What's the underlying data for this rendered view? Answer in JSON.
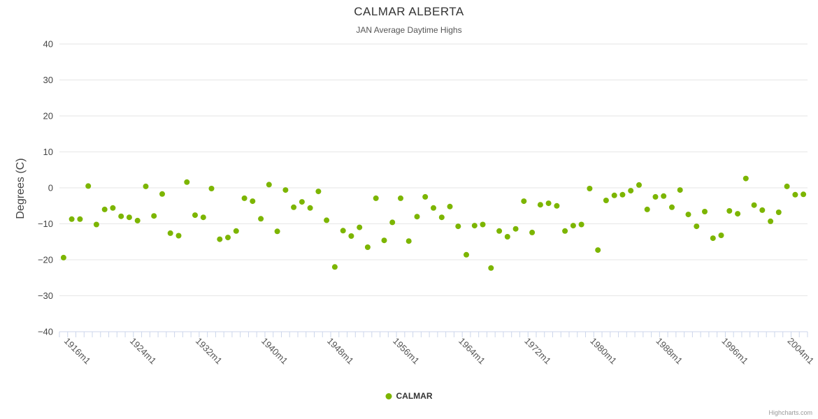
{
  "title": "CALMAR ALBERTA",
  "subtitle": "JAN Average Daytime Highs",
  "y_axis_title": "Degrees (C)",
  "legend": {
    "label": "CALMAR",
    "marker_color": "#7cb500"
  },
  "credit": "Highcharts.com",
  "chart_data": {
    "type": "scatter",
    "series": [
      {
        "name": "CALMAR",
        "color": "#7cb500"
      }
    ],
    "title": "CALMAR ALBERTA",
    "subtitle": "JAN Average Daytime Highs",
    "xlabel": "",
    "ylabel": "Degrees (C)",
    "ylim": [
      -40,
      40
    ],
    "y_ticks": [
      40,
      30,
      20,
      10,
      0,
      -10,
      -20,
      -30,
      -40
    ],
    "x_start_year": 1916,
    "x_suffix": "m1",
    "x_tick_interval": 8,
    "x_tick_labels": [
      "1916m1",
      "1924m1",
      "1932m1",
      "1940m1",
      "1948m1",
      "1956m1",
      "1964m1",
      "1972m1",
      "1980m1",
      "1988m1",
      "1996m1",
      "2004m1"
    ],
    "legend_position": "bottom-center",
    "grid": true,
    "values": [
      -19.4,
      -8.7,
      -8.7,
      0.5,
      -10.2,
      -6.0,
      -5.6,
      -7.9,
      -8.2,
      -9.1,
      0.4,
      -7.8,
      -1.7,
      -12.6,
      -13.3,
      1.6,
      -7.6,
      -8.2,
      -0.2,
      -14.3,
      -13.8,
      -12.0,
      -2.9,
      -3.7,
      -8.6,
      0.9,
      -12.1,
      -0.6,
      -5.4,
      -3.9,
      -5.6,
      -1.0,
      -9.0,
      -22.0,
      -11.9,
      -13.4,
      -11.0,
      -16.5,
      -2.9,
      -14.6,
      -9.6,
      -2.9,
      -14.8,
      -8.0,
      -2.5,
      -5.6,
      -8.2,
      -5.2,
      -10.7,
      -18.6,
      -10.5,
      -10.2,
      -22.3,
      -12.0,
      -13.6,
      -11.4,
      -3.7,
      -12.4,
      -4.7,
      -4.3,
      -5.0,
      -12.0,
      -10.5,
      -10.2,
      -0.2,
      -17.3,
      -3.5,
      -2.1,
      -1.9,
      -0.8,
      0.8,
      -6.0,
      -2.5,
      -2.3,
      -5.4,
      -0.6,
      -7.4,
      -10.7,
      -6.6,
      -14.0,
      -13.2,
      -6.4,
      -7.2,
      2.6,
      -4.8,
      -6.2,
      -9.3,
      -6.8,
      0.4,
      -1.9,
      -1.8
    ]
  }
}
